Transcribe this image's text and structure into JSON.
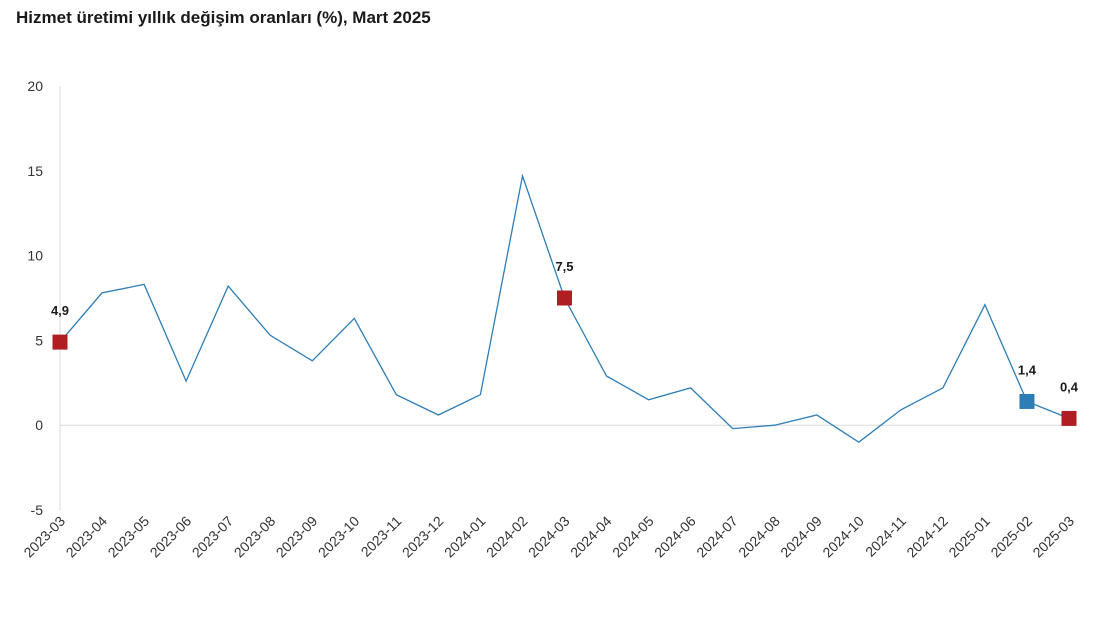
{
  "chart_data": {
    "type": "line",
    "title": "Hizmet üretimi yıllık değişim oranları (%), Mart 2025",
    "xlabel": "",
    "ylabel": "",
    "ylim": [
      -5,
      20
    ],
    "yticks": [
      -5,
      0,
      5,
      10,
      15,
      20
    ],
    "grid": false,
    "line_color": "#2E7DB5",
    "categories": [
      "2023-03",
      "2023-04",
      "2023-05",
      "2023-06",
      "2023-07",
      "2023-08",
      "2023-09",
      "2023-10",
      "2023-11",
      "2023-12",
      "2024-01",
      "2024-02",
      "2024-03",
      "2024-04",
      "2024-05",
      "2024-06",
      "2024-07",
      "2024-08",
      "2024-09",
      "2024-10",
      "2024-11",
      "2024-12",
      "2025-01",
      "2025-02",
      "2025-03"
    ],
    "series": [
      {
        "values": [
          4.9,
          7.8,
          8.3,
          2.6,
          8.2,
          5.3,
          3.8,
          6.3,
          1.8,
          0.6,
          1.8,
          14.7,
          7.5,
          2.9,
          1.5,
          2.2,
          -0.2,
          0.0,
          0.6,
          -1.0,
          0.9,
          2.2,
          7.1,
          1.4,
          0.4
        ]
      }
    ],
    "highlighted_points": [
      {
        "category": "2023-03",
        "value": 4.9,
        "label": "4,9",
        "color": "#B01E23"
      },
      {
        "category": "2024-03",
        "value": 7.5,
        "label": "7,5",
        "color": "#B01E23"
      },
      {
        "category": "2025-02",
        "value": 1.4,
        "label": "1,4",
        "color": "#2E7DB5"
      },
      {
        "category": "2025-03",
        "value": 0.4,
        "label": "0,4",
        "color": "#B01E23"
      }
    ]
  }
}
